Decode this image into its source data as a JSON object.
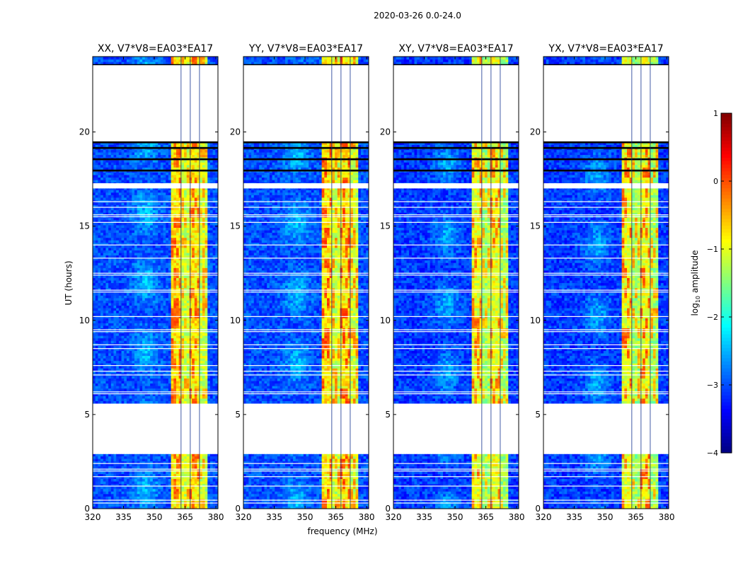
{
  "chart_data": {
    "type": "heatmap",
    "suptitle": "2020-03-26 0.0-24.0",
    "xlabel": "frequency (MHz)",
    "ylabel": "UT (hours)",
    "xlim": [
      320,
      381
    ],
    "ylim": [
      0,
      24
    ],
    "xticks": [
      320,
      335,
      350,
      365,
      380
    ],
    "yticks": [
      0,
      5,
      10,
      15,
      20
    ],
    "colorbar": {
      "label_prefix": "log",
      "label_sub": "10",
      "label_suffix": " amplitude",
      "min": -4,
      "max": 1,
      "ticks": [
        1,
        0,
        -1,
        -2,
        -3,
        -4
      ],
      "tick_labels": [
        "1",
        "0",
        "−1",
        "−2",
        "−3",
        "−4"
      ]
    },
    "data_blocks_hours": [
      [
        0.0,
        2.9
      ],
      [
        5.6,
        17.0
      ],
      [
        17.3,
        17.9
      ],
      [
        18.0,
        18.5
      ],
      [
        18.6,
        19.1
      ],
      [
        19.2,
        19.4
      ],
      [
        23.6,
        24.0
      ]
    ],
    "flagged_black_hours": [
      [
        17.9,
        18.0
      ],
      [
        18.5,
        18.6
      ],
      [
        19.1,
        19.2
      ],
      [
        19.4,
        19.5
      ],
      [
        23.55,
        23.6
      ]
    ],
    "white_gap_lines_hours": [
      0.3,
      0.45,
      1.2,
      1.7,
      2.0,
      2.1,
      2.4,
      6.1,
      6.2,
      7.1,
      7.3,
      7.6,
      8.5,
      8.7,
      9.4,
      9.5,
      10.2,
      11.5,
      11.6,
      12.4,
      12.5,
      13.3,
      14.0,
      15.2,
      15.5,
      15.6,
      16.0,
      16.3
    ],
    "bright_band_mhz": [
      358.5,
      376.5
    ],
    "panels": [
      {
        "title": "XX, V7*V8=EA03*EA17",
        "polarization": "XX",
        "baseline": "V7*V8=EA03*EA17",
        "background_log10": -3.0,
        "band_log10": -0.8,
        "peak_log10": 0.1
      },
      {
        "title": "YY, V7*V8=EA03*EA17",
        "polarization": "YY",
        "baseline": "V7*V8=EA03*EA17",
        "background_log10": -3.0,
        "band_log10": -0.8,
        "peak_log10": 0.2
      },
      {
        "title": "XY, V7*V8=EA03*EA17",
        "polarization": "XY",
        "baseline": "V7*V8=EA03*EA17",
        "background_log10": -3.1,
        "band_log10": -1.0,
        "peak_log10": 0.0
      },
      {
        "title": "YX, V7*V8=EA03*EA17",
        "polarization": "YX",
        "baseline": "V7*V8=EA03*EA17",
        "background_log10": -3.1,
        "band_log10": -1.0,
        "peak_log10": 0.1
      }
    ]
  }
}
